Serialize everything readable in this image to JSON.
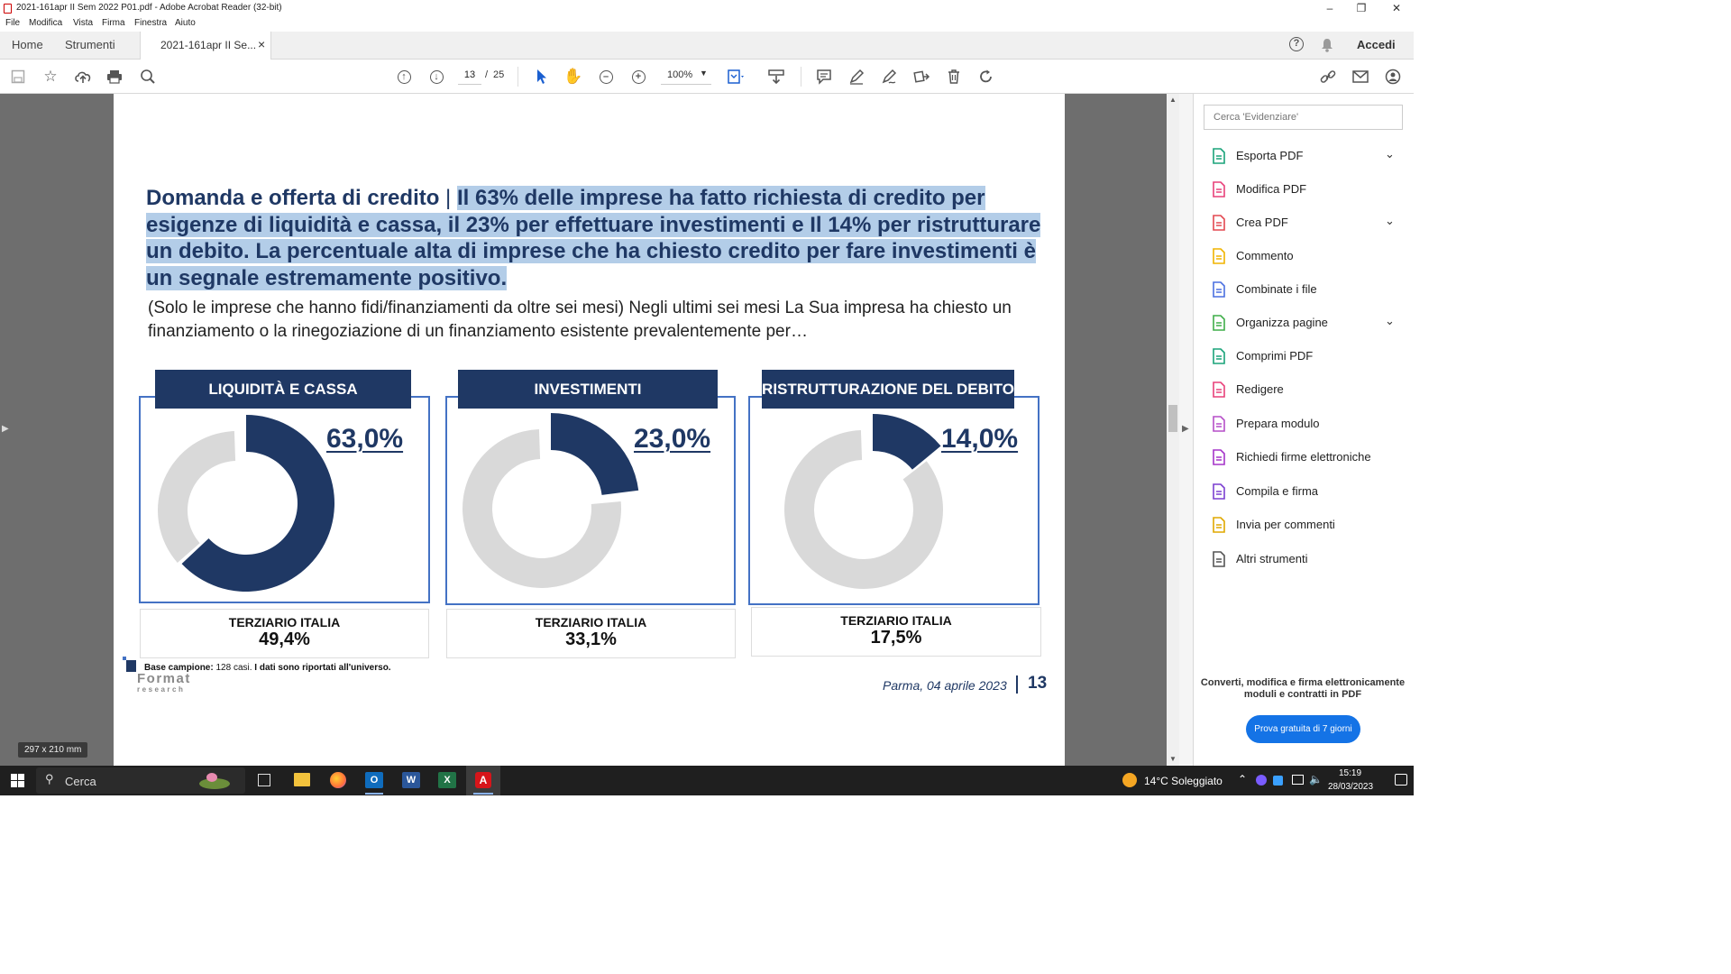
{
  "window": {
    "title": "2021-161apr II Sem 2022 P01.pdf - Adobe Acrobat Reader (32-bit)"
  },
  "menu": [
    "File",
    "Modifica",
    "Vista",
    "Firma",
    "Finestra",
    "Aiuto"
  ],
  "tabs": {
    "home": "Home",
    "tools": "Strumenti",
    "doc": "2021-161apr II Se...",
    "close": "×",
    "signin": "Accedi"
  },
  "toolbar": {
    "page_current": "13",
    "page_sep": "/",
    "page_total": "25",
    "zoom": "100%"
  },
  "slide": {
    "title_lead": "Domanda e offerta di credito",
    "title_sep": " | ",
    "title_highlight": "Il 63% delle imprese ha fatto richiesta di credito per esigenze di liquidità e cassa, il 23% per effettuare investimenti e Il 14% per ristrutturare un debito. La percentuale alta di imprese che ha chiesto credito per fare investimenti è un segnale estremamente positivo.",
    "subtitle": "(Solo le imprese che hanno fidi/finanziamenti da oltre sei mesi) Negli ultimi sei mesi La Sua impresa ha chiesto un finanziamento o la rinegoziazione di un finanziamento esistente prevalentemente per…",
    "footnote_bold": "Base campione:",
    "footnote_normal": " 128 casi.",
    "footnote_rest": " I dati sono riportati all'universo.",
    "logo_top": "Format",
    "logo_bottom": "research",
    "place_date": "Parma,  04 aprile 2023",
    "page_number": "13",
    "paper_size": "297 x 210 mm"
  },
  "chart_data": [
    {
      "type": "pie",
      "title": "LIQUIDITÀ E CASSA",
      "values": [
        63.0,
        37.0
      ],
      "value_label": "63,0%",
      "comparison_label": "TERZIARIO ITALIA",
      "comparison_value": "49,4%",
      "colors": [
        "#1f3864",
        "#d9d9d9"
      ]
    },
    {
      "type": "pie",
      "title": "INVESTIMENTI",
      "values": [
        23.0,
        77.0
      ],
      "value_label": "23,0%",
      "comparison_label": "TERZIARIO ITALIA",
      "comparison_value": "33,1%",
      "colors": [
        "#1f3864",
        "#d9d9d9"
      ]
    },
    {
      "type": "pie",
      "title": "RISTRUTTURAZIONE DEL DEBITO",
      "values": [
        14.0,
        86.0
      ],
      "value_label": "14,0%",
      "comparison_label": "TERZIARIO ITALIA",
      "comparison_value": "17,5%",
      "colors": [
        "#1f3864",
        "#d9d9d9"
      ]
    }
  ],
  "right_pane": {
    "search_placeholder": "Cerca 'Evidenziare'",
    "tools": [
      {
        "label": "Esporta PDF",
        "icon": "export-pdf-icon",
        "color": "#1aa37a"
      },
      {
        "label": "Modifica PDF",
        "icon": "edit-pdf-icon",
        "color": "#e8417a"
      },
      {
        "label": "Crea PDF",
        "icon": "create-pdf-icon",
        "color": "#e34850"
      },
      {
        "label": "Commento",
        "icon": "comment-icon",
        "color": "#f0b400"
      },
      {
        "label": "Combinate i file",
        "icon": "combine-files-icon",
        "color": "#4a6fe0"
      },
      {
        "label": "Organizza pagine",
        "icon": "organize-pages-icon",
        "color": "#3fae49"
      },
      {
        "label": "Comprimi PDF",
        "icon": "compress-pdf-icon",
        "color": "#1aa37a"
      },
      {
        "label": "Redigere",
        "icon": "redact-icon",
        "color": "#e8417a"
      },
      {
        "label": "Prepara modulo",
        "icon": "prepare-form-icon",
        "color": "#b64fc8"
      },
      {
        "label": "Richiedi firme elettroniche",
        "icon": "request-signatures-icon",
        "color": "#a535c9"
      },
      {
        "label": "Compila e firma",
        "icon": "fill-sign-icon",
        "color": "#7b3fd0"
      },
      {
        "label": "Invia per commenti",
        "icon": "send-comments-icon",
        "color": "#e0a800"
      },
      {
        "label": "Altri strumenti",
        "icon": "more-tools-icon",
        "color": "#555555"
      }
    ],
    "promo_text": "Converti, modifica e firma elettronicamente moduli e contratti in PDF",
    "promo_button": "Prova gratuita di 7 giorni"
  },
  "taskbar": {
    "search": "Cerca",
    "weather": "14°C  Soleggiato",
    "time": "15:19",
    "date": "28/03/2023"
  }
}
